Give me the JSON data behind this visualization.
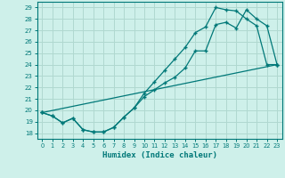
{
  "xlabel": "Humidex (Indice chaleur)",
  "bg_color": "#cef0ea",
  "grid_color": "#b0d8d0",
  "line_color": "#007878",
  "xlim": [
    -0.5,
    23.5
  ],
  "ylim": [
    17.5,
    29.5
  ],
  "xticks": [
    0,
    1,
    2,
    3,
    4,
    5,
    6,
    7,
    8,
    9,
    10,
    11,
    12,
    13,
    14,
    15,
    16,
    17,
    18,
    19,
    20,
    21,
    22,
    23
  ],
  "yticks": [
    18,
    19,
    20,
    21,
    22,
    23,
    24,
    25,
    26,
    27,
    28,
    29
  ],
  "line1_x": [
    0,
    1,
    2,
    3,
    4,
    5,
    6,
    7,
    8,
    9,
    10,
    11,
    12,
    13,
    14,
    15,
    16,
    17,
    18,
    19,
    20,
    21,
    22,
    23
  ],
  "line1_y": [
    19.8,
    19.5,
    18.9,
    19.3,
    18.3,
    18.1,
    18.1,
    18.5,
    19.4,
    20.2,
    21.2,
    21.8,
    22.4,
    22.9,
    23.7,
    25.2,
    25.2,
    27.5,
    27.7,
    27.2,
    28.8,
    28.0,
    27.4,
    24.0
  ],
  "line2_x": [
    0,
    1,
    2,
    3,
    4,
    5,
    6,
    7,
    8,
    9,
    10,
    11,
    12,
    13,
    14,
    15,
    16,
    17,
    18,
    19,
    20,
    21,
    22,
    23
  ],
  "line2_y": [
    19.8,
    19.5,
    18.9,
    19.3,
    18.3,
    18.1,
    18.1,
    18.5,
    19.4,
    20.2,
    21.5,
    22.5,
    23.5,
    24.5,
    25.5,
    26.8,
    27.3,
    29.0,
    28.8,
    28.7,
    28.0,
    27.4,
    24.0,
    24.0
  ],
  "line3_x": [
    0,
    23
  ],
  "line3_y": [
    19.8,
    24.0
  ]
}
